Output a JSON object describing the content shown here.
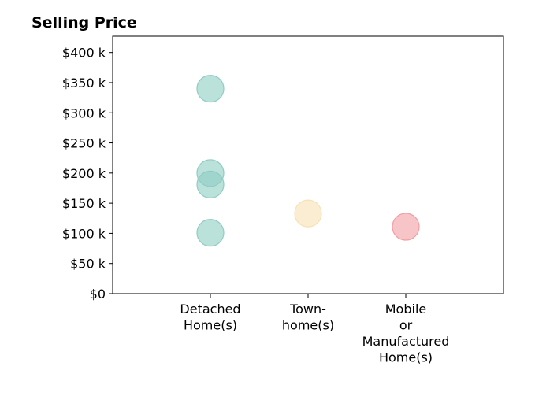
{
  "chart_data": {
    "type": "scatter",
    "title": "Selling Price",
    "xlabel": "",
    "ylabel": "",
    "categories": [
      [
        "Detached",
        "Home(s)"
      ],
      [
        "Town-",
        "home(s)"
      ],
      [
        "Mobile",
        "or",
        "Manufactured",
        "Home(s)"
      ]
    ],
    "y_ticks": [
      {
        "value": 0,
        "label": "$0"
      },
      {
        "value": 50000,
        "label": "$50 k"
      },
      {
        "value": 100000,
        "label": "$100 k"
      },
      {
        "value": 150000,
        "label": "$150 k"
      },
      {
        "value": 200000,
        "label": "$200 k"
      },
      {
        "value": 250000,
        "label": "$250 k"
      },
      {
        "value": 300000,
        "label": "$300 k"
      },
      {
        "value": 350000,
        "label": "$350 k"
      },
      {
        "value": 400000,
        "label": "$400 k"
      }
    ],
    "ylim": [
      0,
      427000
    ],
    "xlim": [
      -1,
      3
    ],
    "grid": false,
    "points": [
      {
        "category": 0,
        "y": 340000,
        "color": "#8ecdc3"
      },
      {
        "category": 0,
        "y": 200000,
        "color": "#8ecdc3"
      },
      {
        "category": 0,
        "y": 181000,
        "color": "#8ecdc3"
      },
      {
        "category": 0,
        "y": 101000,
        "color": "#8ecdc3"
      },
      {
        "category": 1,
        "y": 133000,
        "color": "#f8e1b4"
      },
      {
        "category": 2,
        "y": 111000,
        "color": "#f19ea4"
      }
    ]
  }
}
